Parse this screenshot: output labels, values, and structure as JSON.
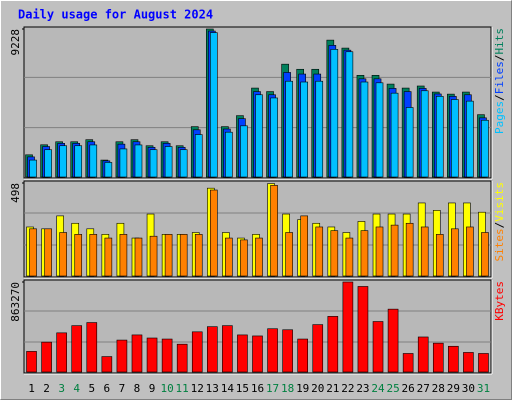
{
  "chart_data": [
    {
      "type": "bar",
      "title": "Daily usage for August 2024",
      "ylim": [
        0,
        9228
      ],
      "yticks": [
        9228
      ],
      "legend_separator": "/",
      "series": [
        {
          "name": "Hits",
          "color": "#00805c",
          "values": [
            1330,
            1960,
            2150,
            2150,
            2280,
            1000,
            2150,
            2280,
            1900,
            2150,
            1900,
            3100,
            9228,
            3100,
            3790,
            5520,
            5300,
            7020,
            6700,
            6700,
            8530,
            8030,
            6320,
            6320,
            5770,
            5520,
            5650,
            5270,
            5140,
            5270,
            3850
          ]
        },
        {
          "name": "Files",
          "color": "#0040ff",
          "values": [
            1200,
            1850,
            2050,
            2050,
            2150,
            950,
            2000,
            2150,
            1800,
            2050,
            1800,
            2900,
            9100,
            2950,
            3600,
            5300,
            5100,
            6500,
            6400,
            6400,
            8200,
            7900,
            6100,
            6100,
            5500,
            5300,
            5500,
            5150,
            5000,
            5100,
            3650
          ]
        },
        {
          "name": "Pages",
          "color": "#00c0ff",
          "values": [
            1000,
            1650,
            1900,
            1900,
            1950,
            850,
            1700,
            1950,
            1650,
            1850,
            1650,
            2600,
            9000,
            2750,
            3150,
            5100,
            4900,
            5950,
            5900,
            5950,
            7950,
            7800,
            5900,
            5850,
            5200,
            4300,
            5350,
            5000,
            4800,
            4700,
            3500
          ]
        }
      ]
    },
    {
      "type": "bar",
      "ylim": [
        0,
        498
      ],
      "yticks": [
        498
      ],
      "legend_separator": "/",
      "series": [
        {
          "name": "Visits",
          "color": "#ffff00",
          "values": [
            260,
            250,
            320,
            280,
            250,
            220,
            280,
            200,
            330,
            220,
            220,
            230,
            470,
            230,
            200,
            220,
            495,
            330,
            300,
            280,
            260,
            230,
            290,
            330,
            330,
            330,
            390,
            350,
            390,
            390,
            340
          ]
        },
        {
          "name": "Sites",
          "color": "#ff8000",
          "values": [
            250,
            250,
            230,
            220,
            220,
            200,
            220,
            200,
            210,
            220,
            220,
            220,
            460,
            200,
            190,
            200,
            485,
            230,
            320,
            260,
            240,
            200,
            240,
            260,
            270,
            280,
            260,
            220,
            250,
            260,
            230
          ]
        }
      ]
    },
    {
      "type": "bar",
      "ylim": [
        0,
        863270
      ],
      "yticks": [
        863270
      ],
      "categories": [
        "1",
        "2",
        "3",
        "4",
        "5",
        "6",
        "7",
        "8",
        "9",
        "10",
        "11",
        "12",
        "13",
        "14",
        "15",
        "16",
        "17",
        "18",
        "19",
        "20",
        "21",
        "22",
        "23",
        "24",
        "25",
        "26",
        "27",
        "28",
        "29",
        "30",
        "31"
      ],
      "label_colors": [
        "#000000",
        "#000000",
        "#008040",
        "#008040",
        "#000000",
        "#000000",
        "#000000",
        "#000000",
        "#000000",
        "#008040",
        "#008040",
        "#000000",
        "#000000",
        "#000000",
        "#000000",
        "#000000",
        "#008040",
        "#008040",
        "#000000",
        "#000000",
        "#000000",
        "#000000",
        "#000000",
        "#008040",
        "#008040",
        "#000000",
        "#000000",
        "#000000",
        "#000000",
        "#000000",
        "#008040"
      ],
      "series": [
        {
          "name": "KBytes",
          "color": "#ff0000",
          "values": [
            190000,
            280000,
            370000,
            440000,
            470000,
            140000,
            300000,
            350000,
            320000,
            310000,
            260000,
            380000,
            430000,
            440000,
            350000,
            340000,
            410000,
            400000,
            310000,
            450000,
            530000,
            863270,
            820000,
            480000,
            600000,
            170000,
            330000,
            270000,
            240000,
            180000,
            170000
          ]
        }
      ]
    }
  ]
}
